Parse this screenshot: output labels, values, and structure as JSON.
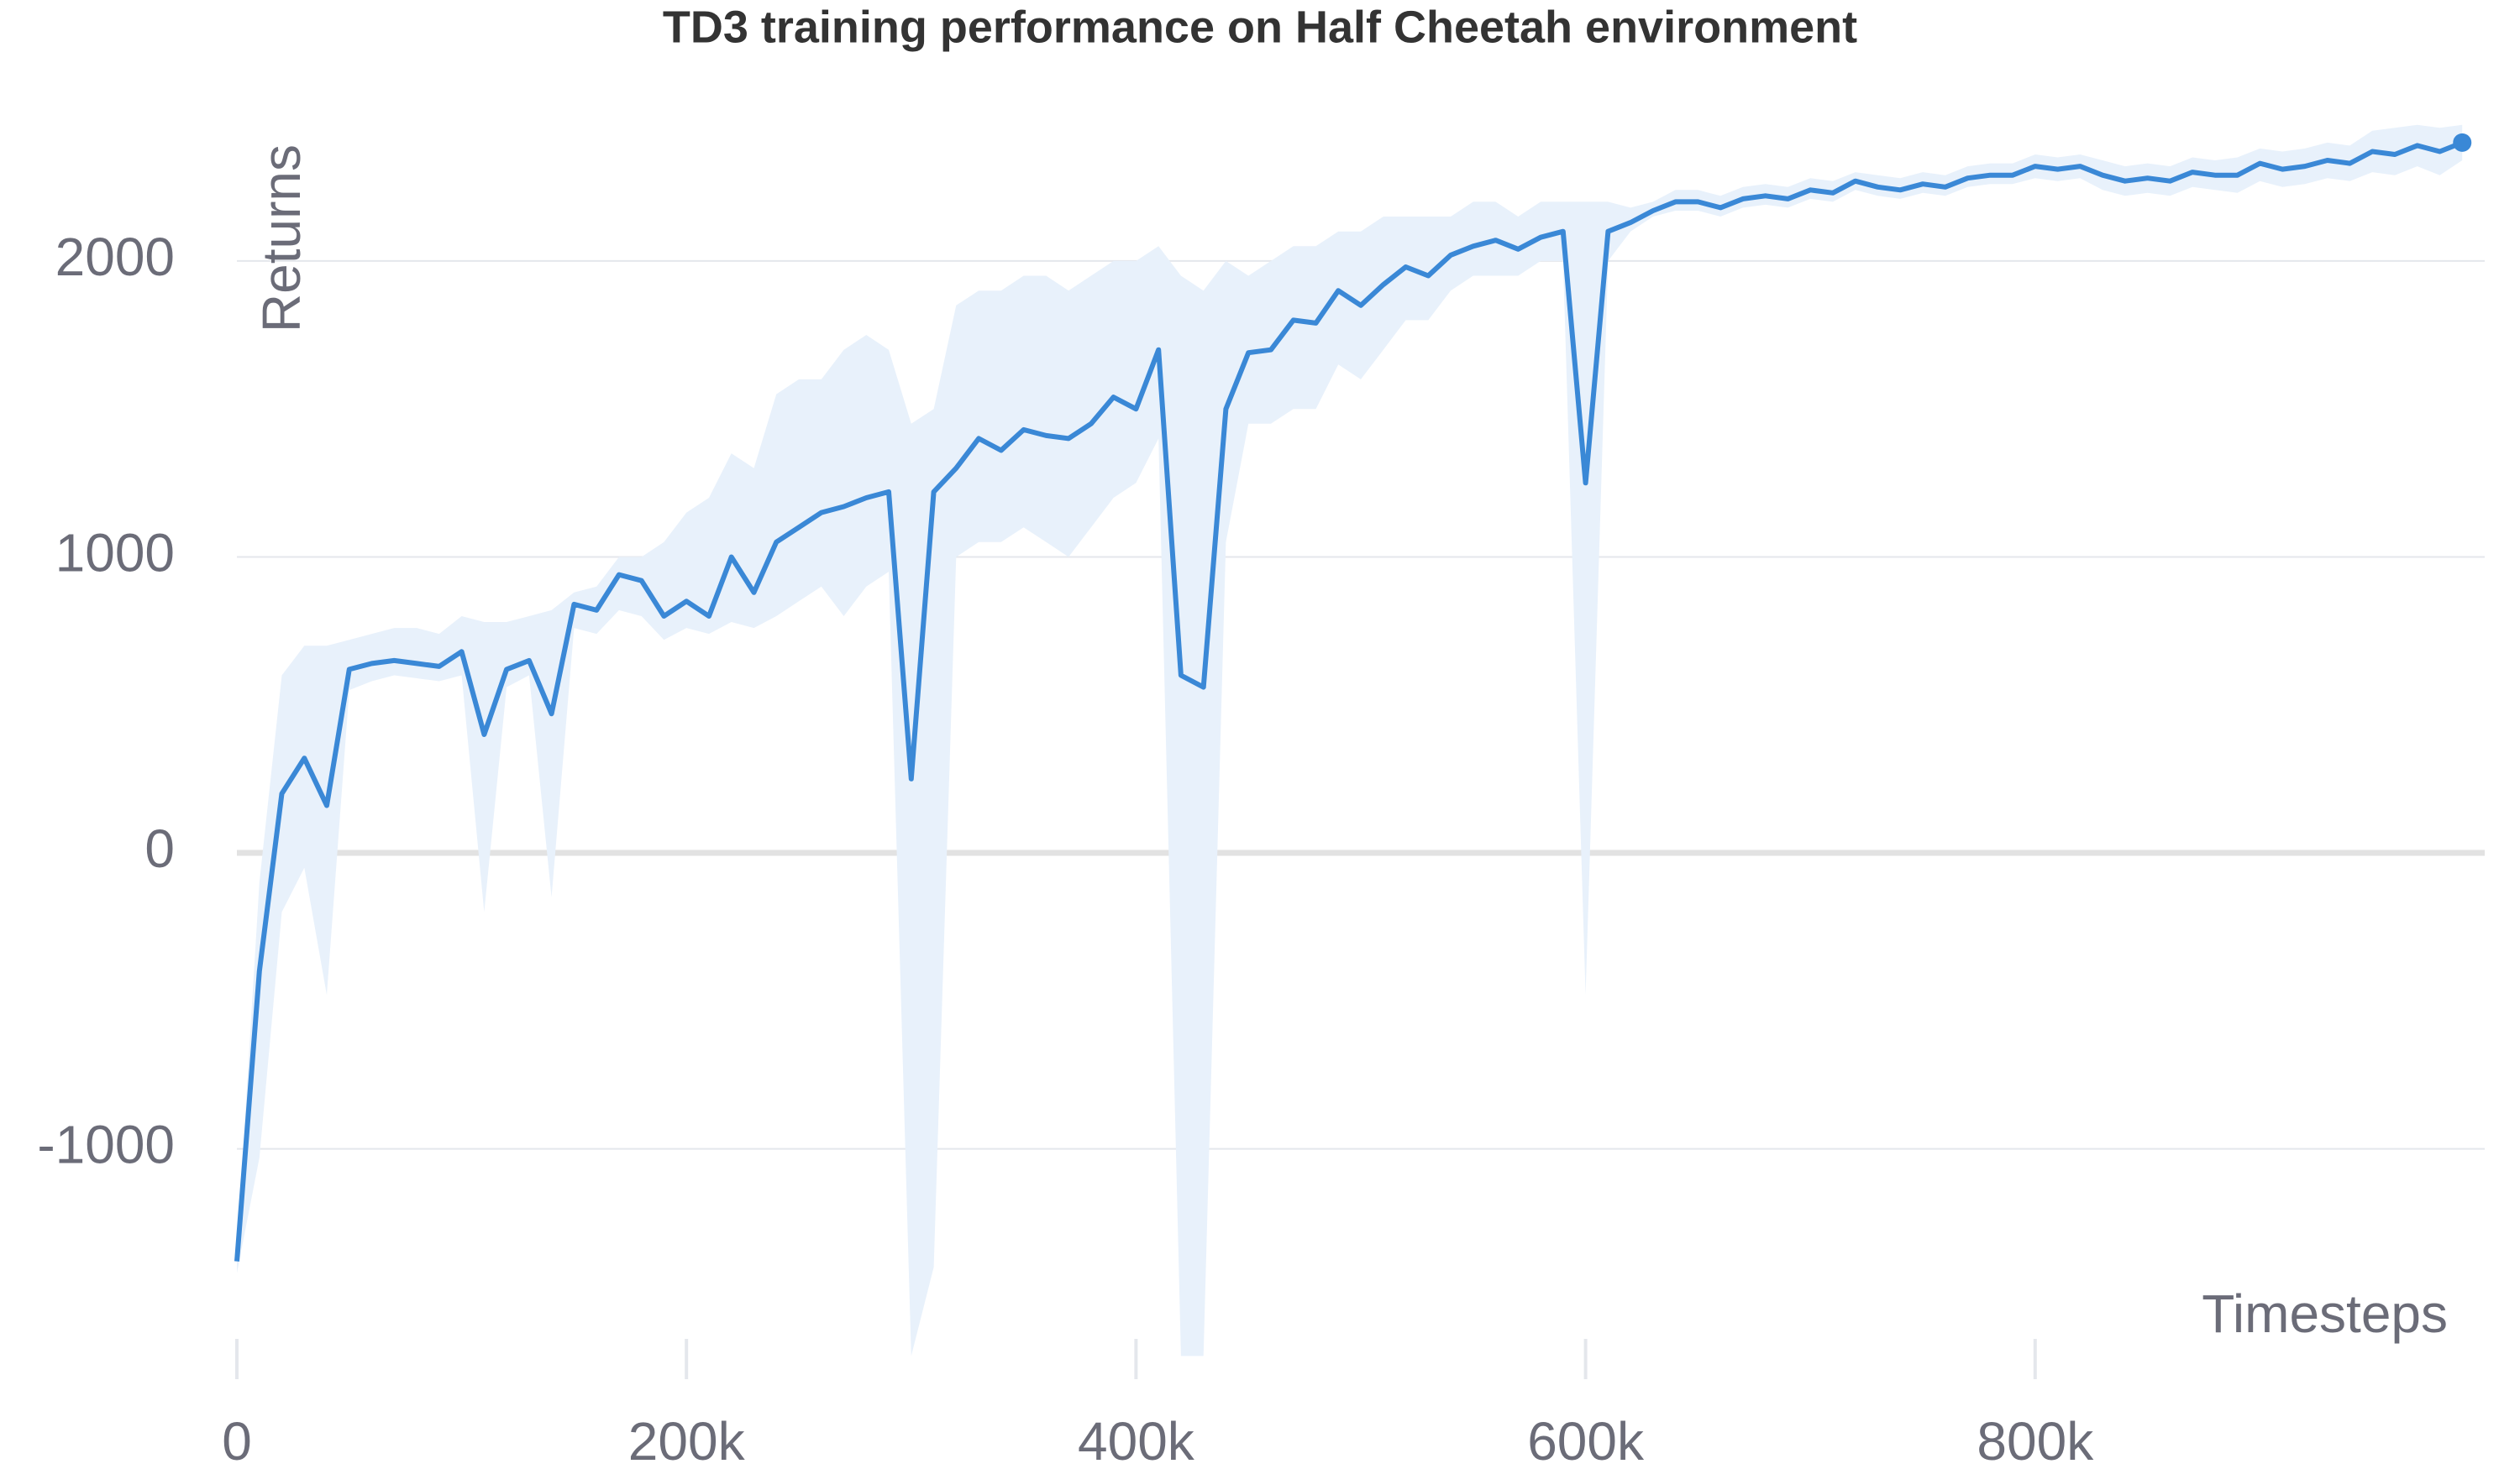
{
  "chart_data": {
    "type": "line",
    "title": "TD3 training performance on Half Cheetah environment",
    "x_label": "Timesteps",
    "y_label": "Returns",
    "x": [
      0,
      10000,
      20000,
      30000,
      40000,
      50000,
      60000,
      70000,
      80000,
      90000,
      100000,
      110000,
      120000,
      130000,
      140000,
      150000,
      160000,
      170000,
      180000,
      190000,
      200000,
      210000,
      220000,
      230000,
      240000,
      250000,
      260000,
      270000,
      280000,
      290000,
      300000,
      310000,
      320000,
      330000,
      340000,
      350000,
      360000,
      370000,
      380000,
      390000,
      400000,
      410000,
      420000,
      430000,
      440000,
      450000,
      460000,
      470000,
      480000,
      490000,
      500000,
      510000,
      520000,
      530000,
      540000,
      550000,
      560000,
      570000,
      580000,
      590000,
      600000,
      610000,
      620000,
      630000,
      640000,
      650000,
      660000,
      670000,
      680000,
      690000,
      700000,
      710000,
      720000,
      730000,
      740000,
      750000,
      760000,
      770000,
      780000,
      790000,
      800000,
      810000,
      820000,
      830000,
      840000,
      850000,
      860000,
      870000,
      880000,
      890000,
      900000,
      910000,
      920000,
      930000,
      940000,
      950000,
      960000,
      970000,
      980000,
      990000
    ],
    "series": [
      {
        "color": "#3a88d6",
        "band_color": "#e8f1fb",
        "values": [
          -1380,
          -400,
          200,
          320,
          160,
          620,
          640,
          650,
          640,
          630,
          680,
          400,
          620,
          650,
          470,
          840,
          820,
          940,
          920,
          800,
          850,
          800,
          1000,
          880,
          1050,
          1100,
          1150,
          1170,
          1200,
          1220,
          250,
          1220,
          1300,
          1400,
          1360,
          1430,
          1410,
          1400,
          1450,
          1540,
          1500,
          1700,
          600,
          560,
          1500,
          1690,
          1700,
          1800,
          1790,
          1900,
          1850,
          1920,
          1980,
          1950,
          2020,
          2050,
          2070,
          2040,
          2080,
          2100,
          1250,
          2100,
          2130,
          2170,
          2200,
          2200,
          2180,
          2210,
          2220,
          2210,
          2240,
          2230,
          2270,
          2250,
          2240,
          2260,
          2250,
          2280,
          2290,
          2290,
          2320,
          2310,
          2320,
          2290,
          2270,
          2280,
          2270,
          2300,
          2290,
          2290,
          2330,
          2310,
          2320,
          2340,
          2330,
          2370,
          2360,
          2390,
          2370,
          2400
        ],
        "upper": [
          -1350,
          -100,
          600,
          700,
          700,
          720,
          740,
          760,
          760,
          740,
          800,
          780,
          780,
          800,
          820,
          880,
          900,
          1000,
          1000,
          1050,
          1150,
          1200,
          1350,
          1300,
          1550,
          1600,
          1600,
          1700,
          1750,
          1700,
          1450,
          1500,
          1850,
          1900,
          1900,
          1950,
          1950,
          1900,
          1950,
          2000,
          2000,
          2050,
          1950,
          1900,
          2000,
          1950,
          2000,
          2050,
          2050,
          2100,
          2100,
          2150,
          2150,
          2150,
          2150,
          2200,
          2200,
          2150,
          2200,
          2200,
          2200,
          2200,
          2180,
          2200,
          2240,
          2240,
          2220,
          2250,
          2260,
          2250,
          2280,
          2270,
          2300,
          2290,
          2280,
          2300,
          2290,
          2320,
          2330,
          2330,
          2360,
          2350,
          2360,
          2340,
          2320,
          2330,
          2320,
          2350,
          2340,
          2350,
          2380,
          2370,
          2380,
          2400,
          2390,
          2440,
          2450,
          2460,
          2450,
          2460
        ],
        "lower": [
          -1420,
          -1030,
          -200,
          -50,
          -480,
          550,
          580,
          600,
          590,
          580,
          600,
          -200,
          560,
          600,
          -150,
          760,
          740,
          820,
          800,
          720,
          760,
          740,
          780,
          760,
          800,
          850,
          900,
          800,
          900,
          950,
          -1700,
          -1400,
          1000,
          1050,
          1050,
          1100,
          1050,
          1000,
          1100,
          1200,
          1250,
          1400,
          -1700,
          -1700,
          1050,
          1450,
          1450,
          1500,
          1500,
          1650,
          1600,
          1700,
          1800,
          1800,
          1900,
          1950,
          1950,
          1950,
          2000,
          2000,
          -480,
          2000,
          2100,
          2150,
          2170,
          2170,
          2150,
          2180,
          2190,
          2180,
          2210,
          2200,
          2240,
          2220,
          2210,
          2230,
          2220,
          2250,
          2260,
          2260,
          2280,
          2270,
          2280,
          2240,
          2220,
          2230,
          2220,
          2250,
          2240,
          2230,
          2270,
          2250,
          2260,
          2280,
          2270,
          2300,
          2290,
          2320,
          2290,
          2340
        ]
      }
    ],
    "marker_last": true,
    "xlim": [
      0,
      1000000
    ],
    "ylim": [
      -1750,
      2550
    ],
    "xticks": [
      0,
      {
        "value": 200000,
        "label": "200k"
      },
      {
        "value": 400000,
        "label": "400k"
      },
      {
        "value": 600000,
        "label": "600k"
      },
      {
        "value": 800000,
        "label": "800k"
      }
    ],
    "yticks": [
      -1000,
      0,
      1000,
      2000
    ],
    "grid": true
  }
}
